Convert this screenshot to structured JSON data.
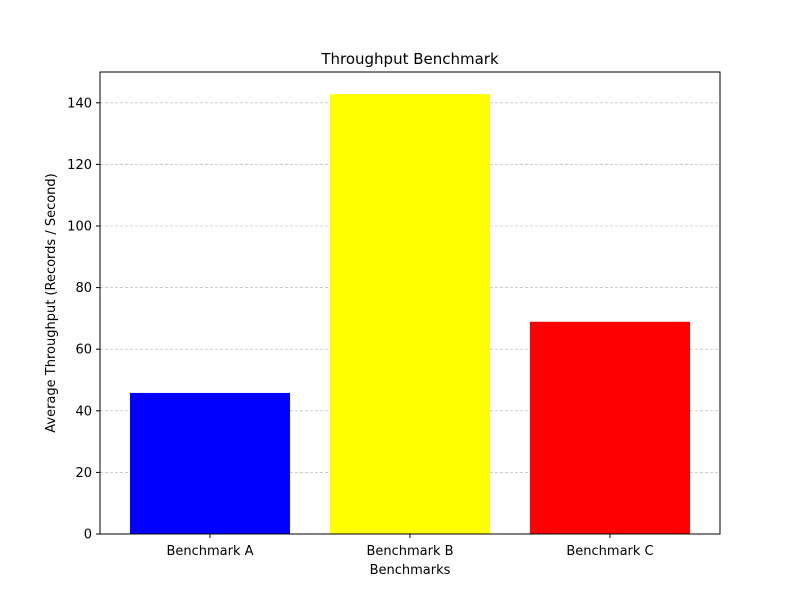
{
  "chart_data": {
    "type": "bar",
    "title": "Throughput Benchmark",
    "xlabel": "Benchmarks",
    "ylabel": "Average Throughput (Records / Second)",
    "categories": [
      "Benchmark A",
      "Benchmark B",
      "Benchmark C"
    ],
    "values": [
      45.8,
      142.8,
      68.9
    ],
    "colors": [
      "#0000ff",
      "#ffff00",
      "#ff0000"
    ],
    "ylim": [
      0,
      150
    ],
    "yticks": [
      0,
      20,
      40,
      60,
      80,
      100,
      120,
      140
    ],
    "grid": "y-dashed",
    "legend": "none"
  }
}
